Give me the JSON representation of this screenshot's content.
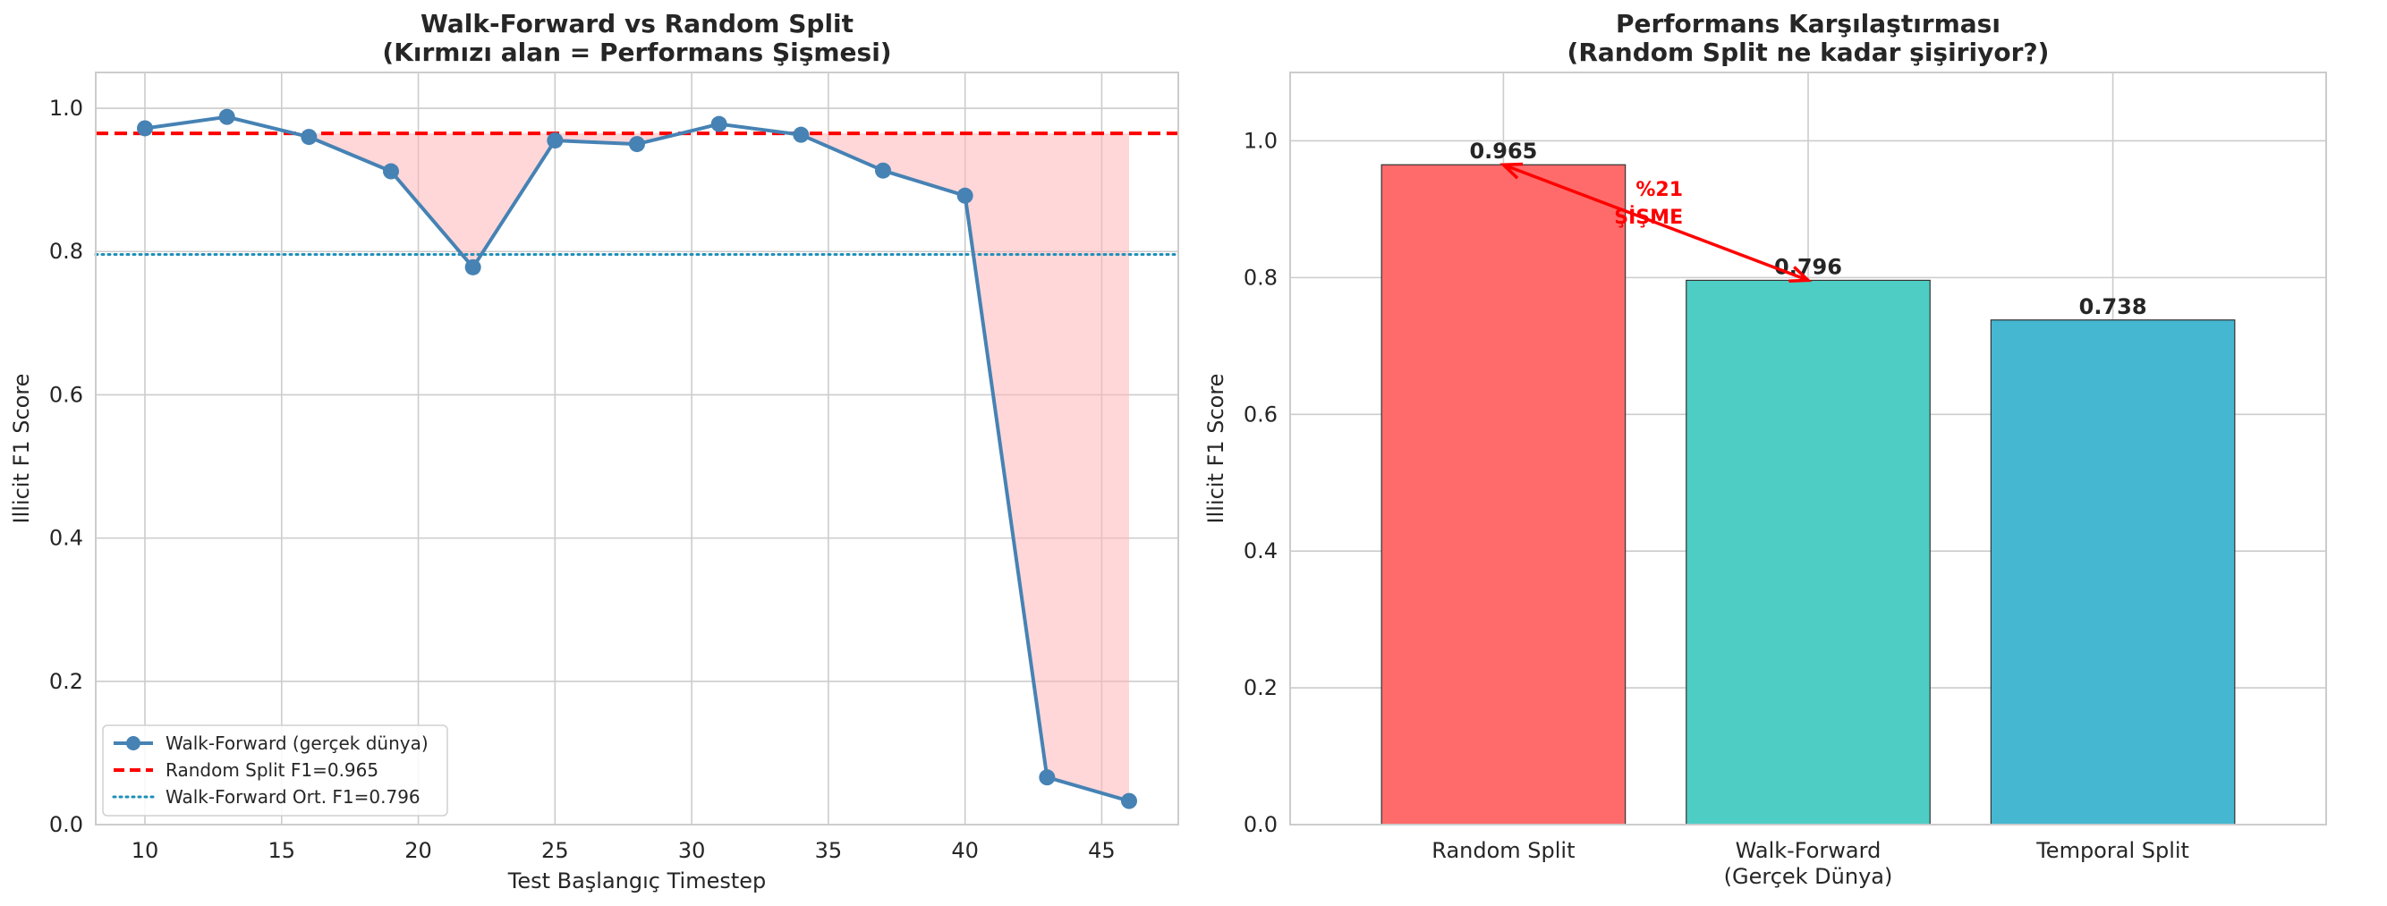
{
  "colors": {
    "line": "#4682b4",
    "random_line": "#ff0000",
    "mean_line": "#1f8fb8",
    "fill": "#ffb6b9",
    "bar_random": "#ff6b6b",
    "bar_walk": "#4ecdc4",
    "bar_temporal": "#45b7d1",
    "annotation": "#ff0000",
    "grid": "#cccccc",
    "text": "#262626"
  },
  "chart_data": [
    {
      "type": "line",
      "title": "Walk-Forward vs Random Split",
      "subtitle": "(Kırmızı alan = Performans Şişmesi)",
      "xlabel": "Test Başlangıç Timestep",
      "ylabel": "Illicit F1 Score",
      "xlim": [
        8.2,
        47.8
      ],
      "ylim": [
        0.0,
        1.05
      ],
      "xticks": [
        10,
        15,
        20,
        25,
        30,
        35,
        40,
        45
      ],
      "yticks": [
        0.0,
        0.2,
        0.4,
        0.6,
        0.8,
        1.0
      ],
      "ytick_labels": [
        "0.0",
        "0.2",
        "0.4",
        "0.6",
        "0.8",
        "1.0"
      ],
      "grid": true,
      "legend_position": "lower-left",
      "series": [
        {
          "name": "Walk-Forward (gerçek dünya)",
          "x": [
            10,
            13,
            16,
            19,
            22,
            25,
            28,
            31,
            34,
            37,
            40,
            43,
            46
          ],
          "y": [
            0.972,
            0.988,
            0.96,
            0.912,
            0.778,
            0.955,
            0.95,
            0.978,
            0.963,
            0.913,
            0.878,
            0.066,
            0.033
          ]
        }
      ],
      "reference_lines": [
        {
          "name": "Random Split F1=0.965",
          "y": 0.965,
          "style": "dashed"
        },
        {
          "name": "Walk-Forward Ort. F1=0.796",
          "y": 0.796,
          "style": "dotted"
        }
      ]
    },
    {
      "type": "bar",
      "title": "Performans Karşılaştırması",
      "subtitle": "(Random Split ne kadar şişiriyor?)",
      "xlabel": "",
      "ylabel": "Illicit F1 Score",
      "ylim": [
        0.0,
        1.1
      ],
      "yticks": [
        0.0,
        0.2,
        0.4,
        0.6,
        0.8,
        1.0
      ],
      "ytick_labels": [
        "0.0",
        "0.2",
        "0.4",
        "0.6",
        "0.8",
        "1.0"
      ],
      "grid": true,
      "categories": [
        [
          "Random Split"
        ],
        [
          "Walk-Forward",
          "(Gerçek Dünya)"
        ],
        [
          "Temporal Split"
        ]
      ],
      "values": [
        0.965,
        0.796,
        0.738
      ],
      "value_labels": [
        "0.965",
        "0.796",
        "0.738"
      ],
      "annotation": {
        "text": [
          "%21",
          "ŞİŞME"
        ],
        "from_bar": 1,
        "to_bar": 0
      }
    }
  ]
}
